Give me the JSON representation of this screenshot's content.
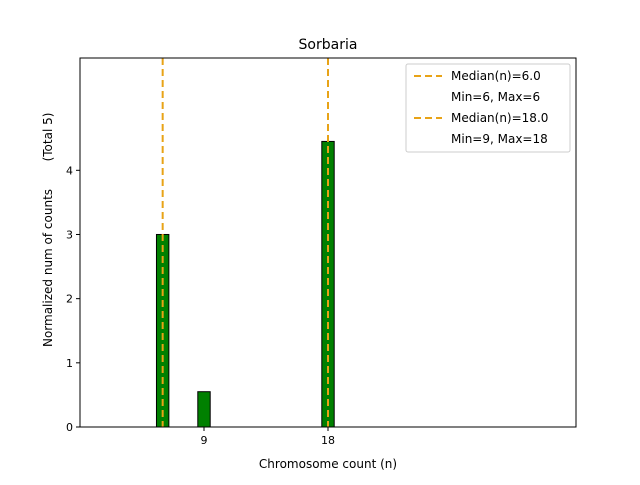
{
  "chart_data": {
    "type": "bar",
    "title": "Sorbaria",
    "xlabel": "Chromosome count (n)",
    "ylabel": "Normalized num of counts",
    "ylabel_note": "(Total 5)",
    "xlim": [
      0,
      36
    ],
    "ylim": [
      0,
      5.75
    ],
    "xticks": [
      9,
      18
    ],
    "yticks": [
      0,
      1,
      2,
      3,
      4
    ],
    "bar_color": "#008000",
    "bar_edge_color": "#000000",
    "bar_width": 0.9,
    "bars": [
      {
        "x": 6,
        "value": 3.0
      },
      {
        "x": 9,
        "value": 0.55
      },
      {
        "x": 18,
        "value": 4.45
      }
    ],
    "baseline": {
      "x_from": 0,
      "x_to": 6,
      "value": 0
    },
    "median_lines": [
      {
        "x": 6,
        "color": "#e8a317",
        "label": "Median(n)=6.0",
        "sublabel": "Min=6, Max=6"
      },
      {
        "x": 18,
        "color": "#e8a317",
        "label": "Median(n)=18.0",
        "sublabel": "Min=9, Max=18"
      }
    ],
    "legend_position": "top-right",
    "grid": false
  }
}
